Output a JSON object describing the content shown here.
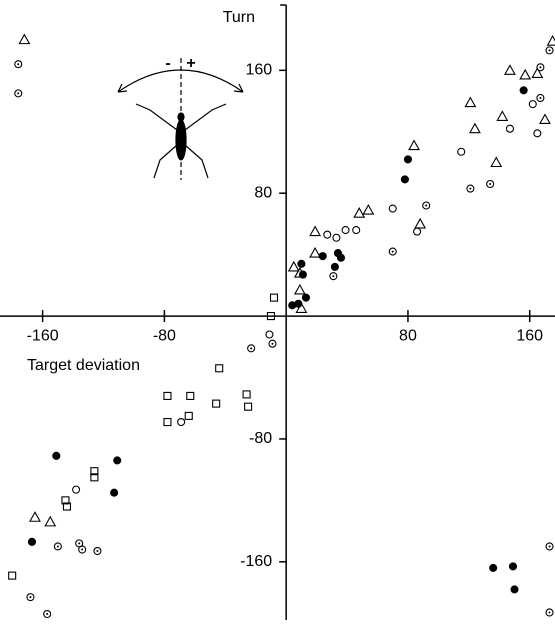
{
  "chart_data": {
    "type": "scatter",
    "x_label": "Target deviation",
    "y_label": "Turn",
    "xlim": [
      -188,
      176.6
    ],
    "ylim": [
      -200.5,
      205.8
    ],
    "xticks": [
      -160,
      -80,
      80,
      160
    ],
    "yticks": [
      -160,
      -80,
      80,
      160
    ],
    "inset": {
      "minus": "-",
      "plus": "+"
    },
    "series": [
      {
        "marker": "triangle",
        "color": "#000000",
        "x": [
          -172,
          175,
          147,
          157,
          165,
          121,
          142,
          170,
          124,
          138,
          84,
          19,
          5,
          19,
          9,
          9,
          10,
          48,
          54,
          88,
          -165,
          -155
        ],
        "y": [
          180,
          179,
          160,
          157,
          158,
          139,
          130,
          128,
          122,
          100,
          111,
          55,
          32,
          41,
          28,
          17,
          5,
          67,
          69,
          60,
          -131,
          -134
        ]
      },
      {
        "marker": "square",
        "color": "#000000",
        "x": [
          -8,
          -10,
          -26,
          -44,
          -63,
          -78,
          -64,
          -78,
          -25,
          -46,
          -126,
          -126,
          -145,
          -144,
          -180
        ],
        "y": [
          12,
          0,
          -51,
          -34,
          -52,
          -52,
          -65,
          -69,
          -59,
          -57,
          -101,
          -105,
          -120,
          -124,
          -169
        ]
      },
      {
        "marker": "circle",
        "color": "#000000",
        "x": [
          27,
          33,
          39,
          46,
          70,
          86,
          115,
          147,
          165,
          162,
          -11,
          -69,
          -138
        ],
        "y": [
          53,
          51,
          56,
          56,
          70,
          55,
          107,
          122,
          119,
          138,
          -12,
          -69,
          -113
        ]
      },
      {
        "marker": "dotted-circle",
        "color": "#000000",
        "x": [
          -176,
          -176,
          31,
          -23,
          70,
          121,
          134,
          167,
          173,
          167,
          92,
          -150,
          -136,
          -134,
          -124,
          -168,
          -157,
          173,
          173,
          -9
        ],
        "y": [
          164,
          145,
          26,
          -21,
          42,
          83,
          86,
          142,
          173,
          162,
          72,
          -150,
          -148,
          -152,
          -153,
          -183,
          -194,
          -150,
          -193,
          -18
        ]
      },
      {
        "marker": "filled-circle",
        "color": "#000000",
        "x": [
          11,
          10,
          13,
          8,
          4,
          24,
          34,
          32,
          36,
          80,
          78,
          156,
          -151,
          -111,
          -113,
          -167,
          136,
          149,
          150
        ],
        "y": [
          27,
          34,
          12,
          8,
          7,
          39,
          41,
          32,
          38,
          102,
          89,
          147,
          -91,
          -94,
          -115,
          -147,
          -164,
          -163,
          -178
        ]
      }
    ]
  }
}
